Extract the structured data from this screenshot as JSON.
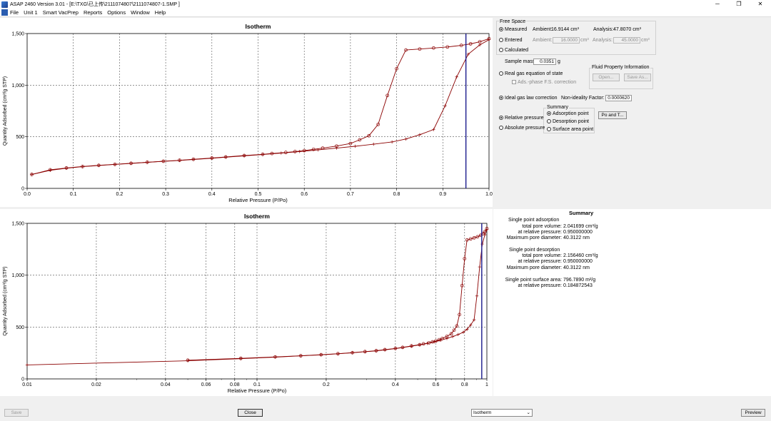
{
  "window": {
    "title": "ASAP 2460 Version 3.01 - [E:\\TXG\\已上传\\2111074807\\2111074807-1.SMP ]",
    "minimize": "─",
    "maximize": "❐",
    "close": "✕"
  },
  "menu": {
    "items": [
      "File",
      "Unit 1",
      "Smart VacPrep",
      "Reports",
      "Options",
      "Window",
      "Help"
    ]
  },
  "colors": {
    "curve": "#8b0000",
    "vline": "#1a1a8c",
    "grid": "#555555"
  },
  "chart_data": [
    {
      "type": "line",
      "title": "Isotherm",
      "xlabel": "Relative Pressure (P/Po)",
      "ylabel": "Quantity Adsorbed (cm³/g STP)",
      "xlim": [
        0,
        1.0
      ],
      "ylim": [
        0,
        1500
      ],
      "xscale": "linear",
      "x_ticks": [
        0.0,
        0.1,
        0.2,
        0.3,
        0.4,
        0.5,
        0.6,
        0.7,
        0.8,
        0.9,
        1.0
      ],
      "x_tick_labels": [
        "0.0",
        "0.1",
        "0.2",
        "0.3",
        "0.4",
        "0.5",
        "0.6",
        "0.7",
        "0.8",
        "0.9",
        "1.0"
      ],
      "y_ticks": [
        0,
        500,
        1000,
        1500
      ],
      "y_tick_labels": [
        "0",
        "500",
        "1,000",
        "1,500"
      ],
      "grid": true,
      "vline_x": 0.95,
      "series": [
        {
          "name": "",
          "marker": "plus",
          "x": [
            0.01,
            0.05,
            0.085,
            0.12,
            0.155,
            0.19,
            0.225,
            0.26,
            0.295,
            0.33,
            0.36,
            0.4,
            0.43,
            0.47,
            0.51,
            0.55,
            0.59,
            0.63,
            0.67,
            0.71,
            0.75,
            0.79,
            0.82,
            0.85,
            0.88,
            0.905,
            0.93,
            0.955,
            0.98,
            1.0
          ],
          "y": [
            135,
            175,
            195,
            210,
            222,
            232,
            242,
            252,
            262,
            270,
            280,
            292,
            302,
            315,
            328,
            342,
            357,
            373,
            390,
            408,
            428,
            450,
            478,
            520,
            570,
            800,
            1080,
            1300,
            1390,
            1440
          ]
        },
        {
          "name": "",
          "marker": "circle",
          "x": [
            0.01,
            0.05,
            0.085,
            0.12,
            0.155,
            0.19,
            0.225,
            0.26,
            0.295,
            0.33,
            0.36,
            0.4,
            0.43,
            0.47,
            0.51,
            0.53,
            0.56,
            0.58,
            0.6,
            0.62,
            0.64,
            0.67,
            0.7,
            0.72,
            0.74,
            0.76,
            0.78,
            0.8,
            0.82,
            0.85,
            0.88,
            0.91,
            0.94,
            0.96,
            0.98,
            1.0
          ],
          "y": [
            135,
            180,
            198,
            212,
            223,
            233,
            243,
            253,
            263,
            272,
            282,
            294,
            304,
            318,
            330,
            338,
            348,
            357,
            366,
            378,
            390,
            410,
            435,
            470,
            510,
            620,
            900,
            1160,
            1340,
            1350,
            1360,
            1370,
            1385,
            1400,
            1420,
            1450
          ]
        }
      ]
    },
    {
      "type": "line",
      "title": "Isotherm",
      "xlabel": "Relative Pressure (P/Po)",
      "ylabel": "Quantity Adsorbed (cm³/g STP)",
      "xlim": [
        0.01,
        1
      ],
      "ylim": [
        0,
        1500
      ],
      "xscale": "log",
      "x_ticks": [
        0.01,
        0.02,
        0.04,
        0.06,
        0.08,
        0.1,
        0.2,
        0.4,
        0.6,
        0.8,
        1
      ],
      "x_tick_labels": [
        "0.01",
        "0.02",
        "0.04",
        "0.06",
        "0.08",
        "0.1",
        "0.2",
        "0.4",
        "0.6",
        "0.8",
        "1"
      ],
      "y_ticks": [
        0,
        500,
        1000,
        1500
      ],
      "y_tick_labels": [
        "0",
        "500",
        "1,000",
        "1,500"
      ],
      "grid": true,
      "vline_x": 0.95,
      "series": [
        {
          "name": "",
          "marker": "plus",
          "x": [
            0.01,
            0.05,
            0.085,
            0.12,
            0.155,
            0.19,
            0.225,
            0.26,
            0.295,
            0.33,
            0.36,
            0.4,
            0.43,
            0.47,
            0.51,
            0.55,
            0.59,
            0.63,
            0.67,
            0.71,
            0.75,
            0.79,
            0.82,
            0.85,
            0.88,
            0.905,
            0.93,
            0.955,
            0.98,
            1.0
          ],
          "y": [
            135,
            175,
            195,
            210,
            222,
            232,
            242,
            252,
            262,
            270,
            280,
            292,
            302,
            315,
            328,
            342,
            357,
            373,
            390,
            408,
            428,
            450,
            478,
            520,
            570,
            800,
            1080,
            1300,
            1390,
            1440
          ]
        },
        {
          "name": "",
          "marker": "circle",
          "x": [
            0.05,
            0.085,
            0.12,
            0.155,
            0.19,
            0.225,
            0.26,
            0.295,
            0.33,
            0.36,
            0.4,
            0.43,
            0.47,
            0.51,
            0.53,
            0.56,
            0.58,
            0.6,
            0.62,
            0.64,
            0.67,
            0.7,
            0.72,
            0.74,
            0.76,
            0.78,
            0.8,
            0.82,
            0.85,
            0.88,
            0.91,
            0.94,
            0.96,
            0.98,
            1.0
          ],
          "y": [
            180,
            198,
            212,
            223,
            233,
            243,
            253,
            263,
            272,
            282,
            294,
            304,
            318,
            330,
            338,
            348,
            357,
            366,
            378,
            390,
            410,
            435,
            470,
            510,
            620,
            900,
            1160,
            1340,
            1350,
            1360,
            1370,
            1385,
            1400,
            1420,
            1450
          ]
        }
      ]
    }
  ],
  "free_space": {
    "group_label": "Free Space",
    "measured": "Measured",
    "entered": "Entered",
    "calculated": "Calculated",
    "ambient_label": "Ambient:",
    "ambient_value": "16.9144 cm³",
    "analysis_label": "Analysis:",
    "analysis_value": "47.8070 cm³",
    "entered_ambient_label": "Ambient:",
    "entered_ambient_value": "16.0000",
    "entered_ambient_unit": "cm³",
    "entered_analysis_label": "Analysis:",
    "entered_analysis_value": "45.0000",
    "entered_analysis_unit": "cm³"
  },
  "sample": {
    "mass_label": "Sample mass:",
    "mass_value": "0.0351",
    "mass_unit": "g"
  },
  "gas": {
    "real_gas": "Real gas equation of state",
    "ads_phase": "Ads.-phase F.S. correction",
    "ideal_gas": "Ideal gas law correction",
    "nonideality_label": "Non-ideality Factor:",
    "nonideality_value": "0.0000620"
  },
  "fluid": {
    "group_label": "Fluid Property Information",
    "open": "Open...",
    "save_as": "Save As..."
  },
  "pressure": {
    "relative": "Relative pressure",
    "absolute": "Absolute pressure"
  },
  "summary_opts": {
    "group_label": "Summary",
    "adsorption_point": "Adsorption point",
    "desorption_point": "Desorption point",
    "surface_area_point": "Surface area point",
    "po_button": "Po and T..."
  },
  "summary": {
    "title": "Summary",
    "ads_header": "Single point adsorption",
    "ads_tpv_label": "total pore volume:",
    "ads_tpv_value": "2.041699 cm³/g",
    "ads_rp_label": "at relative pressure:",
    "ads_rp_value": "0.950000000",
    "ads_mpd_label": "Maximum pore diameter:",
    "ads_mpd_value": "40.3122 nm",
    "des_header": "Single point desorption",
    "des_tpv_label": "total pore volume:",
    "des_tpv_value": "2.156460 cm³/g",
    "des_rp_label": "at relative pressure:",
    "des_rp_value": "0.950000000",
    "des_mpd_label": "Maximum pore diameter:",
    "des_mpd_value": "40.3122 nm",
    "sa_label": "Single point surface area:",
    "sa_value": "796.7890 m²/g",
    "sa_rp_label": "at relative pressure:",
    "sa_rp_value": "0.184872543"
  },
  "bottom": {
    "save": "Save",
    "close": "Close",
    "report_select": "Isotherm",
    "preview": "Preview"
  }
}
